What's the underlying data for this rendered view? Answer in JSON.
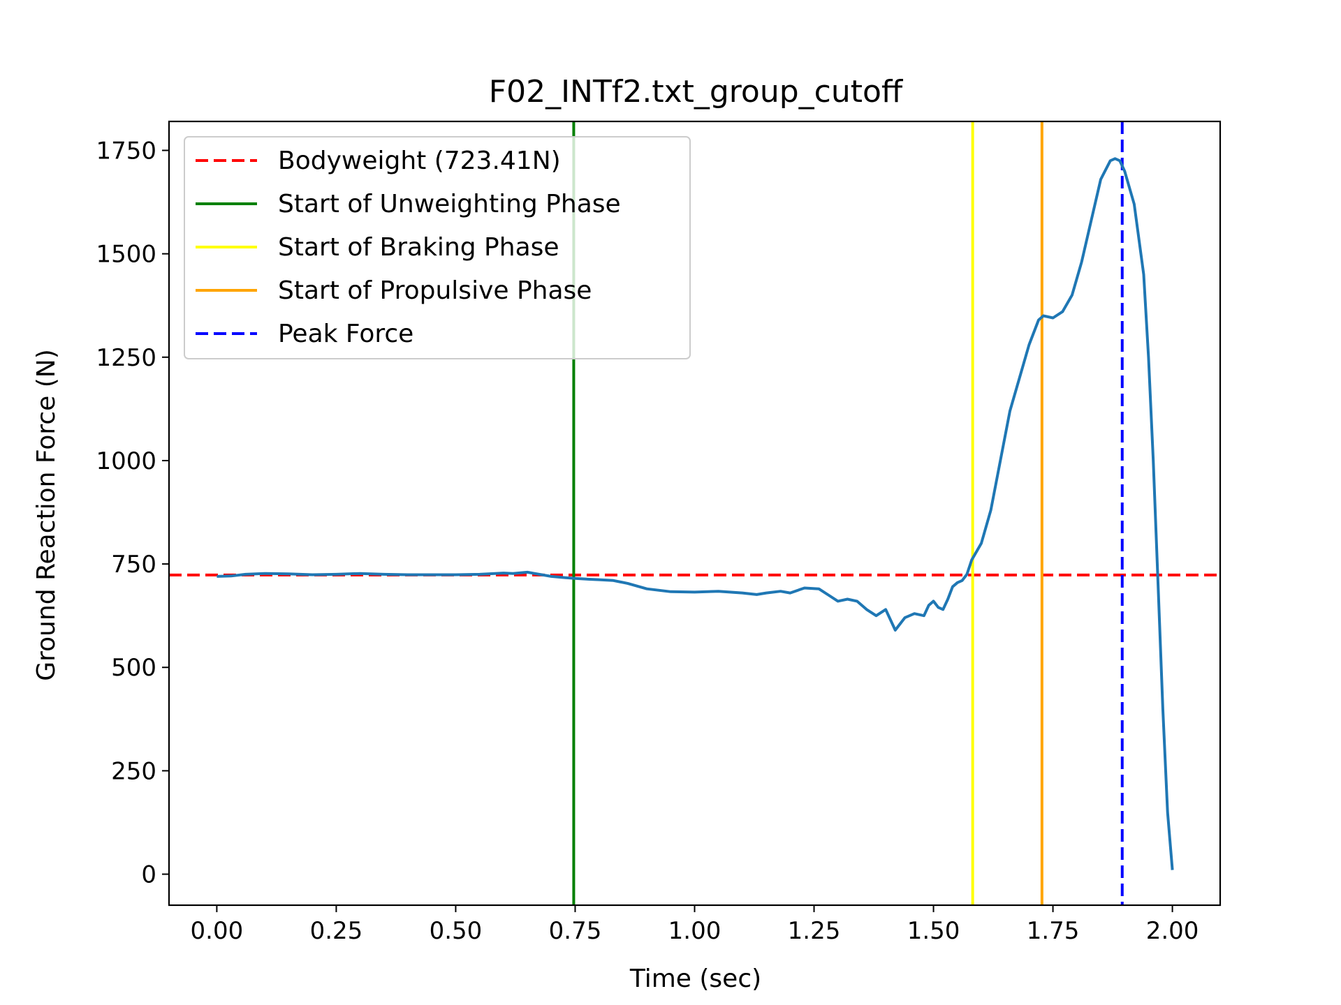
{
  "chart_data": {
    "type": "line",
    "title": "F02_INTf2.txt_group_cutoff",
    "xlabel": "Time (sec)",
    "ylabel": "Ground Reaction Force (N)",
    "xlim": [
      -0.1,
      2.1
    ],
    "ylim": [
      -75,
      1820
    ],
    "xticks": [
      0.0,
      0.25,
      0.5,
      0.75,
      1.0,
      1.25,
      1.5,
      1.75,
      2.0
    ],
    "xtick_labels": [
      "0.00",
      "0.25",
      "0.50",
      "0.75",
      "1.00",
      "1.25",
      "1.50",
      "1.75",
      "2.00"
    ],
    "yticks": [
      0,
      250,
      500,
      750,
      1000,
      1250,
      1500,
      1750
    ],
    "ytick_labels": [
      "0",
      "250",
      "500",
      "750",
      "1000",
      "1250",
      "1500",
      "1750"
    ],
    "grid": false,
    "legend_position": "upper-left",
    "series": [
      {
        "color": "#1f77b4",
        "style": "solid",
        "x": [
          0.0,
          0.03,
          0.06,
          0.1,
          0.15,
          0.2,
          0.25,
          0.3,
          0.35,
          0.4,
          0.45,
          0.5,
          0.55,
          0.6,
          0.62,
          0.65,
          0.68,
          0.7,
          0.73,
          0.75,
          0.78,
          0.8,
          0.83,
          0.86,
          0.9,
          0.95,
          1.0,
          1.05,
          1.1,
          1.13,
          1.15,
          1.18,
          1.2,
          1.23,
          1.26,
          1.28,
          1.3,
          1.32,
          1.34,
          1.36,
          1.38,
          1.4,
          1.42,
          1.44,
          1.46,
          1.48,
          1.49,
          1.5,
          1.51,
          1.52,
          1.53,
          1.54,
          1.55,
          1.56,
          1.57,
          1.58,
          1.6,
          1.62,
          1.64,
          1.66,
          1.68,
          1.7,
          1.72,
          1.73,
          1.75,
          1.77,
          1.79,
          1.81,
          1.83,
          1.85,
          1.87,
          1.88,
          1.89,
          1.9,
          1.92,
          1.94,
          1.95,
          1.96,
          1.97,
          1.98,
          1.99,
          2.0
        ],
        "y": [
          720,
          721,
          725,
          727,
          726,
          724,
          725,
          727,
          725,
          724,
          724,
          724,
          725,
          728,
          727,
          730,
          724,
          720,
          717,
          715,
          713,
          712,
          710,
          703,
          690,
          683,
          682,
          684,
          680,
          676,
          680,
          684,
          680,
          692,
          690,
          675,
          660,
          665,
          660,
          640,
          625,
          640,
          590,
          620,
          630,
          625,
          650,
          660,
          645,
          640,
          665,
          695,
          705,
          710,
          725,
          760,
          800,
          880,
          1000,
          1120,
          1200,
          1280,
          1340,
          1350,
          1345,
          1360,
          1400,
          1480,
          1580,
          1680,
          1725,
          1730,
          1725,
          1700,
          1620,
          1450,
          1250,
          1000,
          700,
          400,
          150,
          10
        ]
      }
    ],
    "reference_lines": [
      {
        "label": "Bodyweight (723.41N)",
        "orientation": "horizontal",
        "value": 723.41,
        "color": "#ff0000",
        "style": "dashed"
      },
      {
        "label": "Start of Unweighting Phase",
        "orientation": "vertical",
        "value": 0.747,
        "color": "#008000",
        "style": "solid"
      },
      {
        "label": "Start of Braking Phase",
        "orientation": "vertical",
        "value": 1.582,
        "color": "#ffff00",
        "style": "solid"
      },
      {
        "label": "Start of Propulsive Phase",
        "orientation": "vertical",
        "value": 1.727,
        "color": "#ffa500",
        "style": "solid"
      },
      {
        "label": "Peak Force",
        "orientation": "vertical",
        "value": 1.895,
        "color": "#0000ff",
        "style": "dashed"
      }
    ]
  }
}
